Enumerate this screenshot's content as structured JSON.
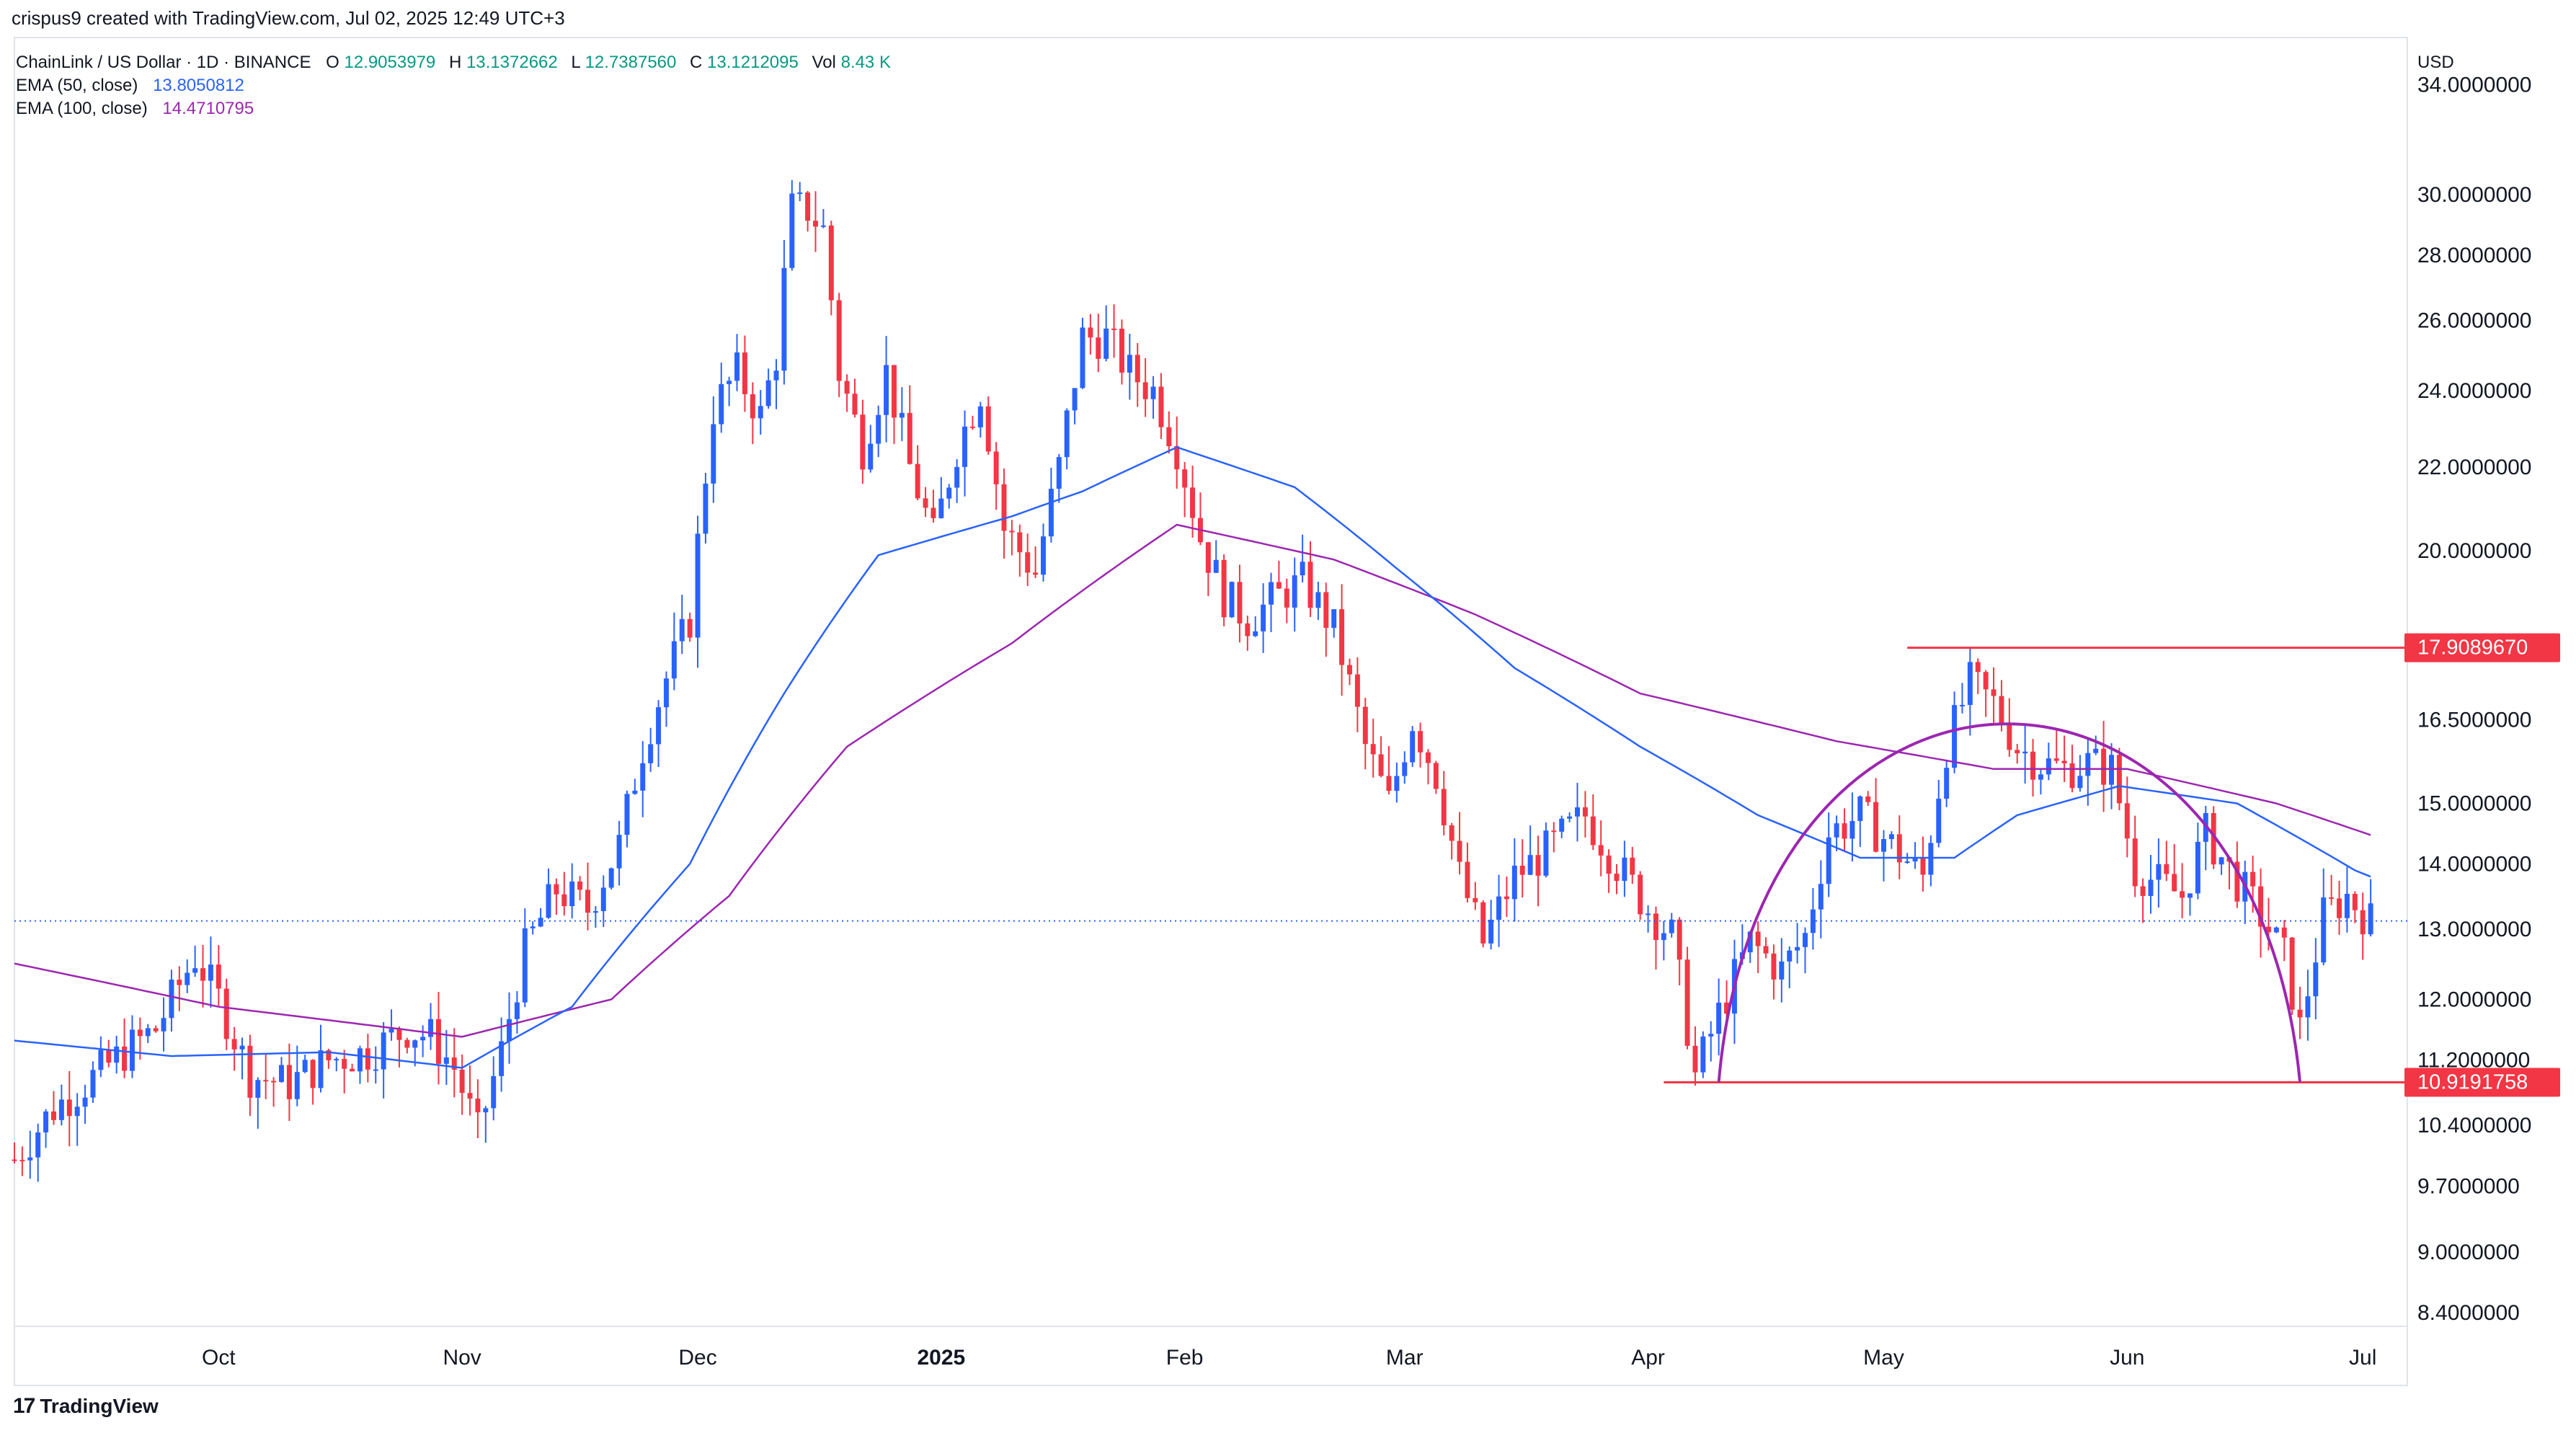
{
  "header": {
    "text": "crispus9 created with TradingView.com, Jul 02, 2025 12:49 UTC+3"
  },
  "legend": {
    "symbol": "ChainLink / US Dollar · 1D · BINANCE",
    "ohlc": {
      "o_label": "O",
      "o": "12.9053979",
      "h_label": "H",
      "h": "13.1372662",
      "l_label": "L",
      "l": "12.7387560",
      "c_label": "C",
      "c": "13.1212095",
      "vol_label": "Vol",
      "vol": "8.43 K"
    },
    "ema50": {
      "label": "EMA (50, close)",
      "value": "13.8050812"
    },
    "ema100": {
      "label": "EMA (100, close)",
      "value": "14.4710795"
    }
  },
  "footer": {
    "logo": "17",
    "text": "TradingView"
  },
  "colors": {
    "up": "#2962ff",
    "down": "#f23645",
    "ema50": "#2962ff",
    "ema100": "#9c27b0",
    "arc": "#9c27b0",
    "level": "#f23645",
    "axis_text": "#131722",
    "grid_dot": "#2962ff"
  },
  "chart_data": {
    "type": "candlestick",
    "currency_label": "USD",
    "y_scale": "log",
    "y_ticks": [
      "34.0000000",
      "30.0000000",
      "28.0000000",
      "26.0000000",
      "24.0000000",
      "22.0000000",
      "20.0000000",
      "16.5000000",
      "15.0000000",
      "14.0000000",
      "13.0000000",
      "12.0000000",
      "11.2000000",
      "10.4000000",
      "9.7000000",
      "9.0000000",
      "8.4000000"
    ],
    "y_tick_values": [
      34,
      30,
      28,
      26,
      24,
      22,
      20,
      16.5,
      15,
      14,
      13,
      12,
      11.2,
      10.4,
      9.7,
      9.0,
      8.4
    ],
    "x_ticks": [
      {
        "label": "Oct",
        "date": "2024-10-01"
      },
      {
        "label": "Nov",
        "date": "2024-11-01"
      },
      {
        "label": "Dec",
        "date": "2024-12-01"
      },
      {
        "label": "2025",
        "date": "2025-01-01",
        "bold": true
      },
      {
        "label": "Feb",
        "date": "2025-02-01"
      },
      {
        "label": "Mar",
        "date": "2025-03-01"
      },
      {
        "label": "Apr",
        "date": "2025-04-01"
      },
      {
        "label": "May",
        "date": "2025-05-01"
      },
      {
        "label": "Jun",
        "date": "2025-06-01"
      },
      {
        "label": "Jul",
        "date": "2025-07-01"
      }
    ],
    "x_start": "2024-09-05",
    "x_end": "2025-07-03",
    "current_price": 13.1212095,
    "levels": [
      {
        "label": "17.9089670",
        "value": 17.908967,
        "from": "2025-05-04",
        "to": "2025-07-03"
      },
      {
        "label": "10.9191758",
        "value": 10.9191758,
        "from": "2025-04-03",
        "to": "2025-07-03"
      }
    ],
    "arc": {
      "start": {
        "date": "2025-04-10",
        "value": 10.92
      },
      "peak": {
        "date": "2025-05-15",
        "value": 17.91
      },
      "end": {
        "date": "2025-06-23",
        "value": 10.92
      }
    },
    "price_anchors": [
      [
        "2024-09-05",
        10.0
      ],
      [
        "2024-09-10",
        10.6
      ],
      [
        "2024-09-14",
        10.9
      ],
      [
        "2024-09-19",
        11.3
      ],
      [
        "2024-09-23",
        11.6
      ],
      [
        "2024-09-28",
        12.6
      ],
      [
        "2024-10-01",
        12.0
      ],
      [
        "2024-10-05",
        11.0
      ],
      [
        "2024-10-10",
        10.9
      ],
      [
        "2024-10-15",
        11.2
      ],
      [
        "2024-10-20",
        11.3
      ],
      [
        "2024-10-25",
        11.6
      ],
      [
        "2024-10-28",
        11.5
      ],
      [
        "2024-10-31",
        11.1
      ],
      [
        "2024-11-03",
        10.3
      ],
      [
        "2024-11-06",
        11.3
      ],
      [
        "2024-11-09",
        12.7
      ],
      [
        "2024-11-13",
        13.6
      ],
      [
        "2024-11-17",
        13.3
      ],
      [
        "2024-11-21",
        14.3
      ],
      [
        "2024-11-24",
        16.0
      ],
      [
        "2024-11-27",
        17.3
      ],
      [
        "2024-11-30",
        18.5
      ],
      [
        "2024-12-03",
        23.5
      ],
      [
        "2024-12-06",
        24.5
      ],
      [
        "2024-12-09",
        23.3
      ],
      [
        "2024-12-11",
        25.0
      ],
      [
        "2024-12-13",
        29.5
      ],
      [
        "2024-12-15",
        29.5
      ],
      [
        "2024-12-17",
        28.8
      ],
      [
        "2024-12-19",
        24.5
      ],
      [
        "2024-12-22",
        22.5
      ],
      [
        "2024-12-25",
        24.5
      ],
      [
        "2024-12-28",
        22.0
      ],
      [
        "2024-12-31",
        20.3
      ],
      [
        "2025-01-03",
        22.5
      ],
      [
        "2025-01-06",
        24.0
      ],
      [
        "2025-01-09",
        20.5
      ],
      [
        "2025-01-13",
        19.5
      ],
      [
        "2025-01-16",
        22.0
      ],
      [
        "2025-01-19",
        25.5
      ],
      [
        "2025-01-22",
        25.5
      ],
      [
        "2025-01-25",
        24.5
      ],
      [
        "2025-01-28",
        24.0
      ],
      [
        "2025-01-31",
        22.5
      ],
      [
        "2025-02-03",
        20.3
      ],
      [
        "2025-02-06",
        19.0
      ],
      [
        "2025-02-09",
        18.5
      ],
      [
        "2025-02-13",
        19.0
      ],
      [
        "2025-02-16",
        19.3
      ],
      [
        "2025-02-20",
        18.3
      ],
      [
        "2025-02-24",
        16.0
      ],
      [
        "2025-02-27",
        15.0
      ],
      [
        "2025-03-02",
        16.5
      ],
      [
        "2025-03-05",
        15.5
      ],
      [
        "2025-03-08",
        13.8
      ],
      [
        "2025-03-11",
        12.8
      ],
      [
        "2025-03-15",
        13.8
      ],
      [
        "2025-03-19",
        14.2
      ],
      [
        "2025-03-24",
        14.8
      ],
      [
        "2025-03-28",
        14.0
      ],
      [
        "2025-04-01",
        13.3
      ],
      [
        "2025-04-04",
        12.9
      ],
      [
        "2025-04-07",
        11.0
      ],
      [
        "2025-04-10",
        11.8
      ],
      [
        "2025-04-14",
        12.8
      ],
      [
        "2025-04-18",
        12.4
      ],
      [
        "2025-04-21",
        12.9
      ],
      [
        "2025-04-24",
        14.5
      ],
      [
        "2025-04-28",
        14.8
      ],
      [
        "2025-05-02",
        14.3
      ],
      [
        "2025-05-06",
        13.8
      ],
      [
        "2025-05-09",
        16.0
      ],
      [
        "2025-05-12",
        17.2
      ],
      [
        "2025-05-15",
        16.8
      ],
      [
        "2025-05-18",
        16.0
      ],
      [
        "2025-05-21",
        15.7
      ],
      [
        "2025-05-24",
        15.6
      ],
      [
        "2025-05-27",
        15.7
      ],
      [
        "2025-05-30",
        15.6
      ],
      [
        "2025-06-02",
        13.9
      ],
      [
        "2025-06-05",
        13.7
      ],
      [
        "2025-06-08",
        13.5
      ],
      [
        "2025-06-11",
        14.5
      ],
      [
        "2025-06-14",
        13.9
      ],
      [
        "2025-06-18",
        13.2
      ],
      [
        "2025-06-21",
        12.6
      ],
      [
        "2025-06-23",
        11.6
      ],
      [
        "2025-06-26",
        13.2
      ],
      [
        "2025-06-29",
        13.5
      ],
      [
        "2025-07-02",
        13.12
      ]
    ],
    "ema50_anchors": [
      [
        "2024-09-05",
        11.45
      ],
      [
        "2024-09-25",
        11.25
      ],
      [
        "2024-10-15",
        11.3
      ],
      [
        "2024-11-01",
        11.1
      ],
      [
        "2024-11-15",
        11.9
      ],
      [
        "2024-11-30",
        14.0
      ],
      [
        "2024-12-12",
        17.0
      ],
      [
        "2024-12-24",
        19.9
      ],
      [
        "2025-01-10",
        20.8
      ],
      [
        "2025-01-19",
        21.4
      ],
      [
        "2025-01-31",
        22.5
      ],
      [
        "2025-02-15",
        21.5
      ],
      [
        "2025-02-28",
        19.6
      ],
      [
        "2025-03-15",
        17.5
      ],
      [
        "2025-03-31",
        16.0
      ],
      [
        "2025-04-15",
        14.8
      ],
      [
        "2025-04-28",
        14.1
      ],
      [
        "2025-05-10",
        14.1
      ],
      [
        "2025-05-18",
        14.8
      ],
      [
        "2025-05-31",
        15.3
      ],
      [
        "2025-06-15",
        15.0
      ],
      [
        "2025-06-30",
        13.9
      ],
      [
        "2025-07-02",
        13.8
      ]
    ],
    "ema100_anchors": [
      [
        "2024-09-05",
        12.5
      ],
      [
        "2024-10-01",
        11.9
      ],
      [
        "2024-11-01",
        11.5
      ],
      [
        "2024-11-20",
        12.0
      ],
      [
        "2024-12-05",
        13.5
      ],
      [
        "2024-12-20",
        16.0
      ],
      [
        "2025-01-10",
        18.0
      ],
      [
        "2025-01-31",
        20.6
      ],
      [
        "2025-02-20",
        19.8
      ],
      [
        "2025-03-10",
        18.6
      ],
      [
        "2025-03-31",
        17.0
      ],
      [
        "2025-04-25",
        16.1
      ],
      [
        "2025-05-15",
        15.6
      ],
      [
        "2025-06-01",
        15.6
      ],
      [
        "2025-06-20",
        15.0
      ],
      [
        "2025-07-02",
        14.47
      ]
    ]
  }
}
